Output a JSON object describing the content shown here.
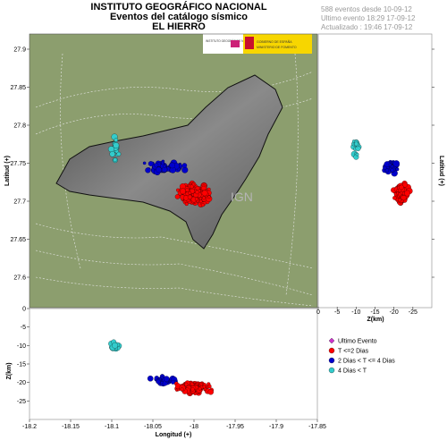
{
  "header": {
    "title_line1": "INSTITUTO GEOGRÁFICO NACIONAL",
    "title_line2": "Eventos del catálogo sísmico",
    "title_line3": "EL HIERRO"
  },
  "stats": {
    "events_line": "588 eventos desde 10-09-12",
    "last_event_line": "Ultimo evento 18:29 17-09-12",
    "updated_line": "Actualizado : 19:46  17-09-12"
  },
  "logos": {
    "ign_text": "INSTITUTO GEOGRÁFICO NACIONAL",
    "gov_text_a": "GOBIERNO DE ESPAÑA",
    "gov_text_b": "MINISTERIO DE FOMENTO"
  },
  "watermark": "IGN",
  "colors": {
    "ultimo_evento": "#cc33cc",
    "t_le_2": "#ff0000",
    "t_2_4": "#0000cc",
    "t_gt_4": "#33cccc",
    "sea": "#8c9e6e",
    "island": "#6e6e6e"
  },
  "legend": {
    "items": [
      {
        "key": "ultimo_evento",
        "label": "Ultimo Evento",
        "marker": "diamond"
      },
      {
        "key": "t_le_2",
        "label": "T <=2 Dias",
        "marker": "circle"
      },
      {
        "key": "t_2_4",
        "label": "2 Dias  < T <= 4 Dias",
        "marker": "circle"
      },
      {
        "key": "t_gt_4",
        "label": "4 Dias  <  T",
        "marker": "circle"
      }
    ]
  },
  "chart_data": [
    {
      "type": "scatter",
      "panel": "map",
      "xlabel": "",
      "ylabel": "Latitud (+)",
      "ylim": [
        27.56,
        27.92
      ],
      "yticks": [
        "27.9",
        "27.85",
        "27.8",
        "27.75",
        "27.7",
        "27.65",
        "27.6"
      ],
      "y_tick_values": [
        27.9,
        27.85,
        27.8,
        27.75,
        27.7,
        27.65,
        27.6
      ],
      "xlim": [
        -18.2,
        -17.85
      ],
      "clusters": [
        {
          "series": "t_le_2",
          "center": [
            -18.0,
            27.71
          ],
          "spread": [
            0.028,
            0.017
          ],
          "count": 160
        },
        {
          "series": "t_2_4",
          "center": [
            -18.035,
            27.745
          ],
          "spread": [
            0.03,
            0.01
          ],
          "count": 70
        },
        {
          "series": "t_gt_4",
          "center": [
            -18.095,
            27.77
          ],
          "spread": [
            0.007,
            0.02
          ],
          "count": 22
        }
      ]
    },
    {
      "type": "scatter",
      "panel": "lat_depth",
      "xlabel": "Z(km)",
      "ylabel": "Latitud (+)",
      "xlim": [
        0,
        -30
      ],
      "xticks": [
        "0",
        "-5",
        "-10",
        "-15",
        "-20",
        "-25"
      ],
      "x_tick_values": [
        0,
        -5,
        -10,
        -15,
        -20,
        -25
      ],
      "ylim": [
        27.56,
        27.92
      ],
      "clusters": [
        {
          "series": "t_le_2",
          "center": [
            -22,
            27.71
          ],
          "spread": [
            2.2,
            0.017
          ],
          "count": 110
        },
        {
          "series": "t_2_4",
          "center": [
            -19,
            27.745
          ],
          "spread": [
            2.5,
            0.01
          ],
          "count": 40
        },
        {
          "series": "t_gt_4",
          "center": [
            -10,
            27.77
          ],
          "spread": [
            1.2,
            0.02
          ],
          "count": 18
        }
      ]
    },
    {
      "type": "scatter",
      "panel": "depth_lon",
      "xlabel": "Longitud (+)",
      "ylabel": "Z(km)",
      "xlim": [
        -18.2,
        -17.85
      ],
      "xticks": [
        "-18.2",
        "-18.15",
        "-18.1",
        "-18.05",
        "-18",
        "-17.95",
        "-17.9",
        "-17.85"
      ],
      "x_tick_values": [
        -18.2,
        -18.15,
        -18.1,
        -18.05,
        -18.0,
        -17.95,
        -17.9,
        -17.85
      ],
      "ylim": [
        0,
        -30
      ],
      "yticks": [
        "0",
        "-5",
        "-10",
        "-15",
        "-20",
        "-25"
      ],
      "y_tick_values": [
        0,
        -5,
        -10,
        -15,
        -20,
        -25
      ],
      "clusters": [
        {
          "series": "t_le_2",
          "center": [
            -18.0,
            -21.5
          ],
          "spread": [
            0.03,
            1.8
          ],
          "count": 130
        },
        {
          "series": "t_2_4",
          "center": [
            -18.035,
            -19.5
          ],
          "spread": [
            0.025,
            1.6
          ],
          "count": 40
        },
        {
          "series": "t_gt_4",
          "center": [
            -18.095,
            -10
          ],
          "spread": [
            0.008,
            1.3
          ],
          "count": 16
        }
      ]
    }
  ]
}
